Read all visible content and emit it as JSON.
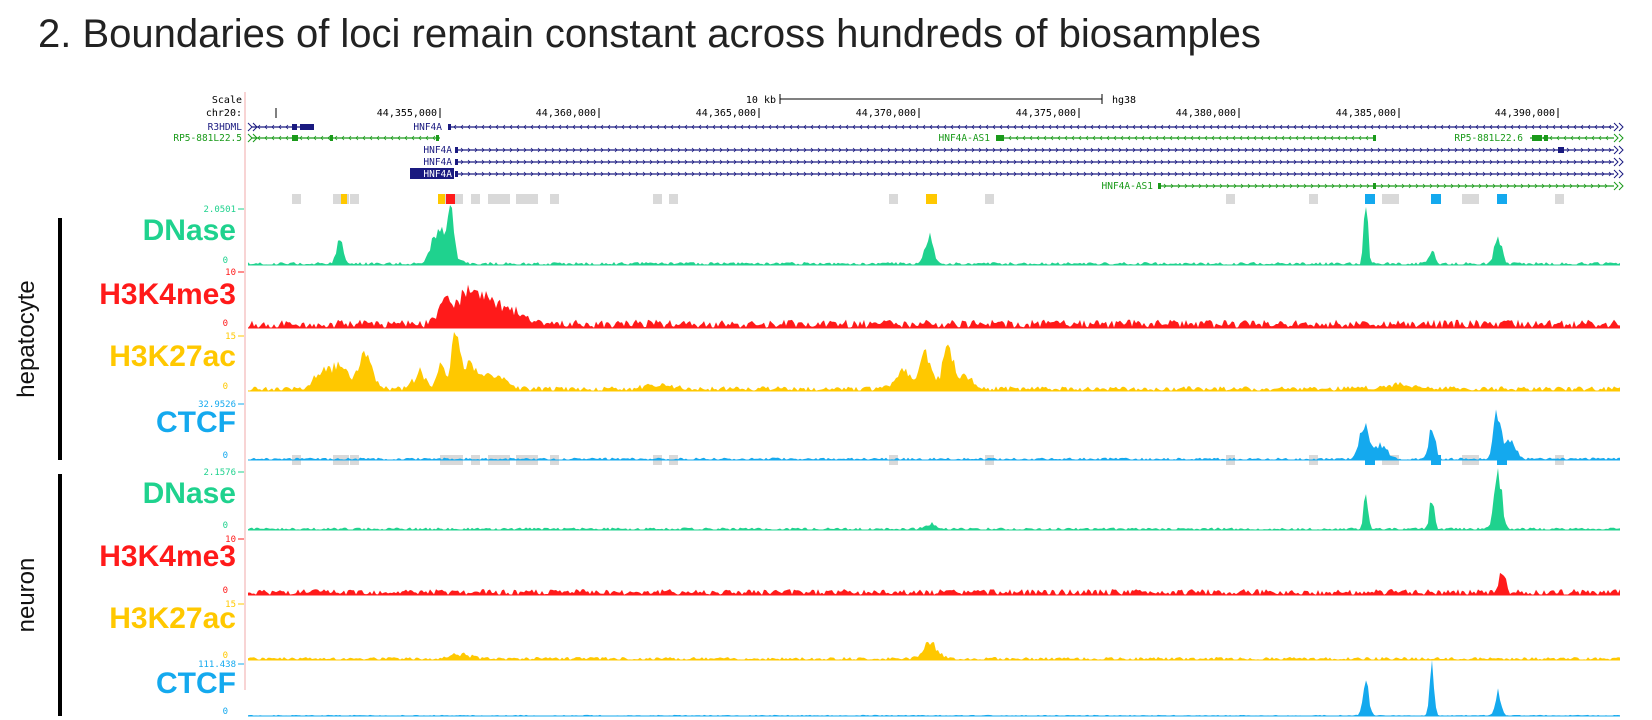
{
  "title": "2. Boundaries of loci remain constant across hundreds of biosamples",
  "browser": {
    "scale_label": "Scale",
    "chr_label": "chr20:",
    "scale_bar_text": "10 kb",
    "assembly": "hg38",
    "positions": [
      "44,355,000",
      "44,360,000",
      "44,365,000",
      "44,370,000",
      "44,375,000",
      "44,380,000",
      "44,385,000",
      "44,390,000"
    ],
    "gene_rows": [
      {
        "left_label": "R3HDML",
        "labels": [
          "HNF4A"
        ]
      },
      {
        "left_label": "RP5-881L22.5",
        "labels": [
          "HNF4A-AS1",
          "RP5-881L22.6"
        ]
      },
      {
        "left_label": "",
        "labels": [
          "HNF4A"
        ]
      },
      {
        "left_label": "",
        "labels": [
          "HNF4A"
        ]
      },
      {
        "left_label": "",
        "labels": [
          "HNF4A"
        ]
      },
      {
        "left_label": "",
        "labels": [
          "HNF4A-AS1"
        ]
      }
    ]
  },
  "groups": [
    {
      "name": "hepatocyte",
      "tracks": [
        {
          "name": "DNase",
          "color": "#1fd28e",
          "scale_top": "2.0501",
          "scale_bottom": "0"
        },
        {
          "name": "H3K4me3",
          "color": "#ff1a1a",
          "scale_top": "10",
          "scale_bottom": "0"
        },
        {
          "name": "H3K27ac",
          "color": "#ffc800",
          "scale_top": "15",
          "scale_bottom": "0"
        },
        {
          "name": "CTCF",
          "color": "#14a9ee",
          "scale_top": "32.9526",
          "scale_bottom": "0"
        }
      ]
    },
    {
      "name": "neuron",
      "tracks": [
        {
          "name": "DNase",
          "color": "#1fd28e",
          "scale_top": "2.1576",
          "scale_bottom": "0"
        },
        {
          "name": "H3K4me3",
          "color": "#ff1a1a",
          "scale_top": "10",
          "scale_bottom": "0"
        },
        {
          "name": "H3K27ac",
          "color": "#ffc800",
          "scale_top": "15",
          "scale_bottom": "0"
        },
        {
          "name": "CTCF",
          "color": "#14a9ee",
          "scale_top": "111.438",
          "scale_bottom": "0"
        }
      ]
    }
  ],
  "colors": {
    "gene_navy": "#1a1a80",
    "gene_green": "#1a9a1a",
    "segment_gray": "#d9d9d9",
    "segment_yellow": "#ffc800",
    "segment_red": "#ff1a1a",
    "segment_blue": "#14a9ee"
  }
}
